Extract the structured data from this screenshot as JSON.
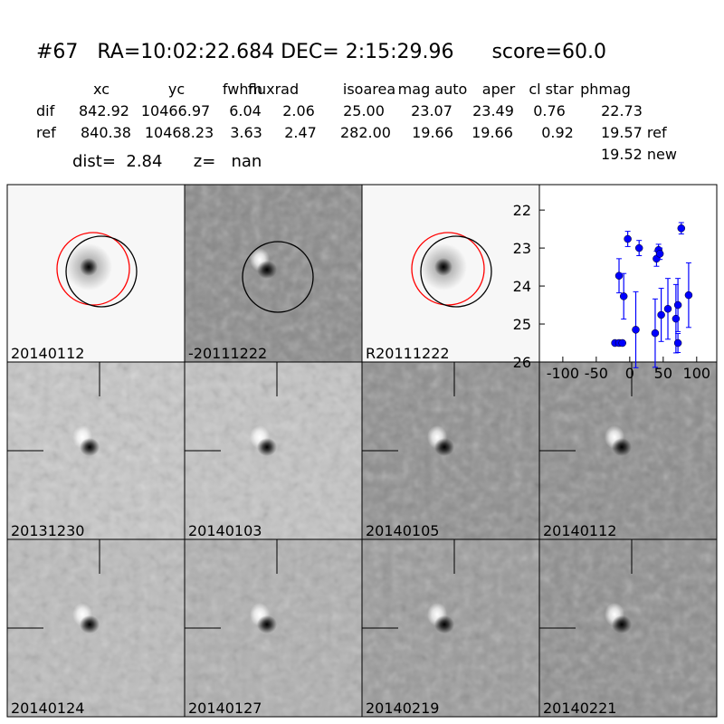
{
  "header": {
    "title": "#67   RA=10:02:22.684 DEC= 2:15:29.96      score=60.0",
    "distance": "dist=  2.84      z=   nan"
  },
  "table": {
    "columns": [
      "xc",
      "yc",
      "fwhm",
      "fluxrad",
      "isoarea",
      "mag auto",
      "aper",
      "cl star",
      "phmag"
    ],
    "rows": [
      {
        "label": "dif",
        "values": [
          "842.92",
          "10466.97",
          "6.04",
          "2.06",
          "25.00",
          "23.07",
          "23.49",
          "0.76",
          "22.73"
        ]
      },
      {
        "label": "ref",
        "values": [
          "840.38",
          "10468.23",
          "3.63",
          "2.47",
          "282.00",
          "19.66",
          "19.66",
          "0.92",
          "19.57 ref"
        ]
      }
    ],
    "extra": "19.52 new"
  },
  "panels": [
    "20140112",
    "-20111222",
    "R20111222",
    "20131230",
    "20140103",
    "20140105",
    "20140112",
    "20140124",
    "20140127",
    "20140219",
    "20140221"
  ],
  "chart_data": {
    "type": "scatter",
    "color": "#0000ff",
    "x": [
      -22,
      -16,
      -11,
      -16,
      -9,
      -3,
      9,
      14,
      38,
      40,
      43,
      45,
      47,
      57,
      69,
      72,
      72,
      77,
      88
    ],
    "series": [
      {
        "values": [
          25.5,
          25.5,
          25.5,
          23.73,
          24.27,
          22.76,
          25.15,
          23.0,
          25.24,
          23.28,
          23.05,
          23.15,
          24.76,
          24.6,
          24.86,
          24.5,
          25.5,
          22.48,
          24.24
        ],
        "errors": [
          0.05,
          0.05,
          0.05,
          0.45,
          0.6,
          0.2,
          1.0,
          0.2,
          0.9,
          0.2,
          0.15,
          0.15,
          0.7,
          0.8,
          0.9,
          0.7,
          0.25,
          0.15,
          0.85
        ]
      }
    ],
    "xlim": [
      -135,
      130
    ],
    "ylim": [
      26,
      21.33
    ],
    "xticks": [
      -100,
      -50,
      0,
      50,
      100
    ],
    "yticks": [
      22,
      23,
      24,
      25,
      26
    ]
  }
}
